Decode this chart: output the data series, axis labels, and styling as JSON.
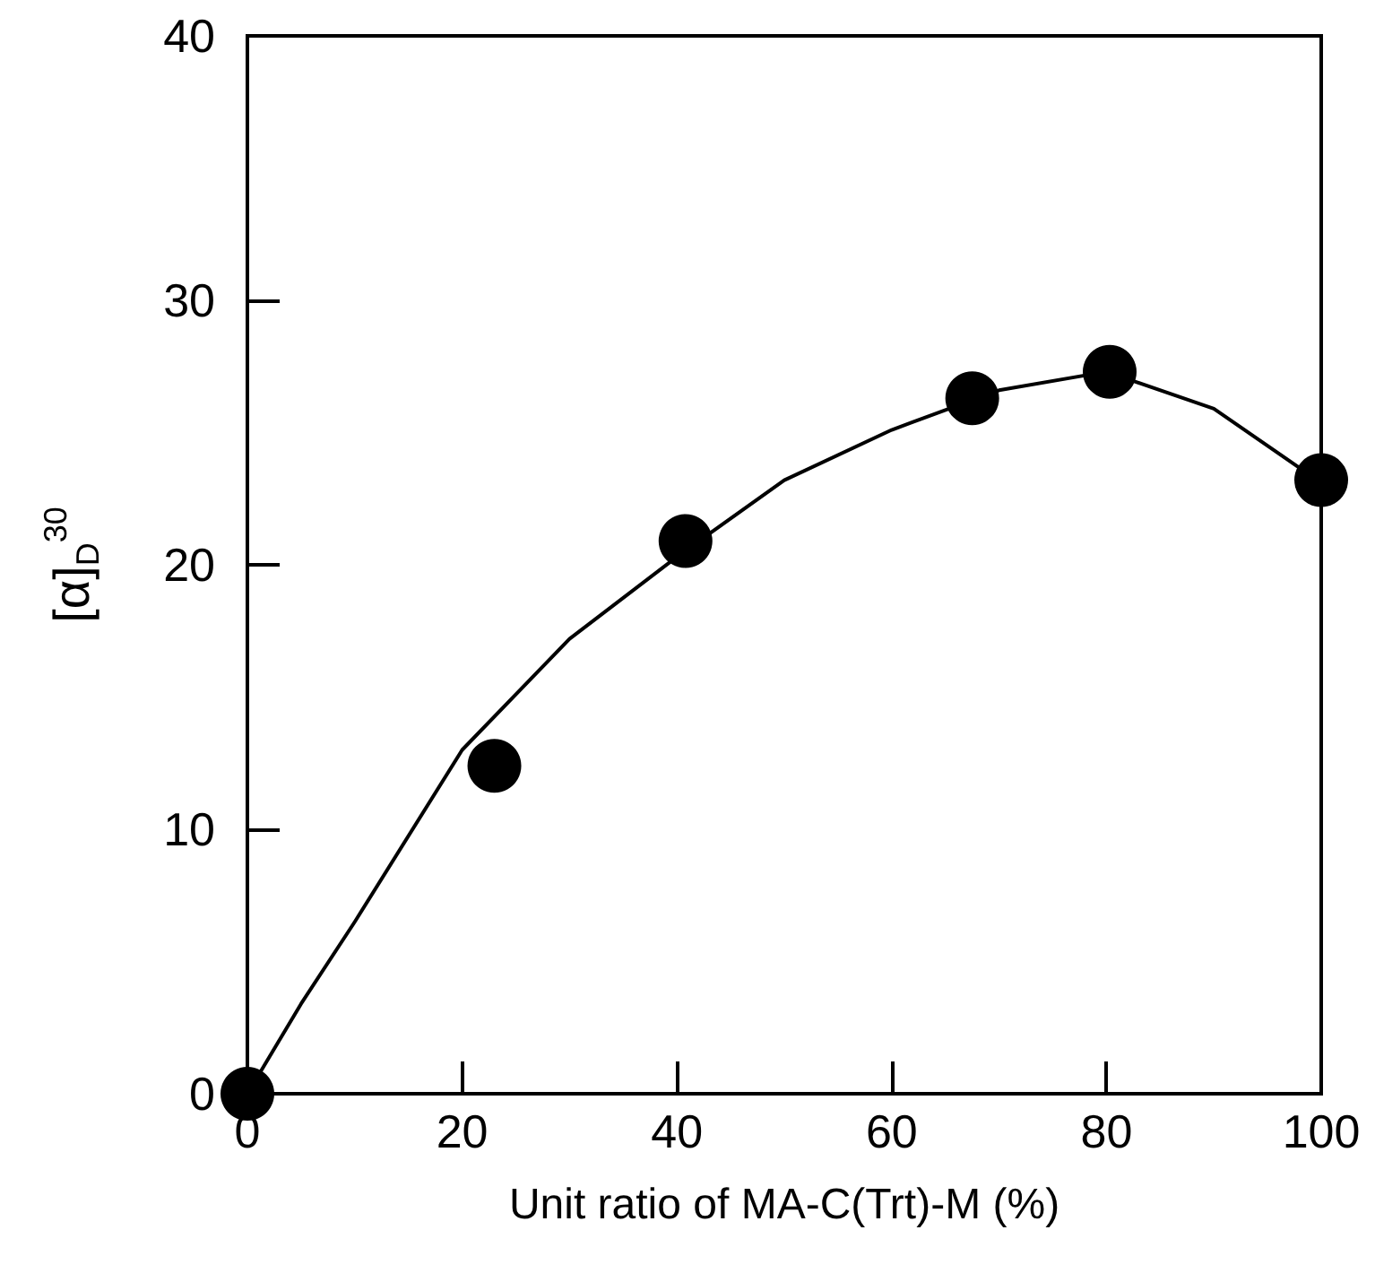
{
  "chart_data": {
    "type": "scatter",
    "xlabel": "Unit ratio of MA-C(Trt)-M (%)",
    "ylabel": "[α]$_{D}$$^{30}$",
    "xlim": [
      0,
      100
    ],
    "xticks": [
      0,
      20,
      40,
      60,
      80,
      100
    ],
    "ylim": [
      0,
      40
    ],
    "yticks": [
      0,
      10,
      20,
      30,
      40
    ],
    "grid": false,
    "series": [
      {
        "color": "#000000",
        "marker": "circle",
        "x": [
          0,
          23,
          40.8,
          67.5,
          80.3,
          100
        ],
        "values": [
          0,
          12.4,
          20.9,
          26.3,
          27.3,
          23.2
        ]
      },
      {
        "type": "line",
        "color": "#000000",
        "marker": "none",
        "line_style": "solid",
        "x": [
          0,
          5,
          10,
          20,
          30,
          40,
          50,
          60,
          70,
          80,
          90,
          100
        ],
        "values": [
          0,
          3.4,
          6.5,
          13,
          17.2,
          20.3,
          23.2,
          25.1,
          26.6,
          27.3,
          25.9,
          23.1
        ]
      }
    ]
  }
}
